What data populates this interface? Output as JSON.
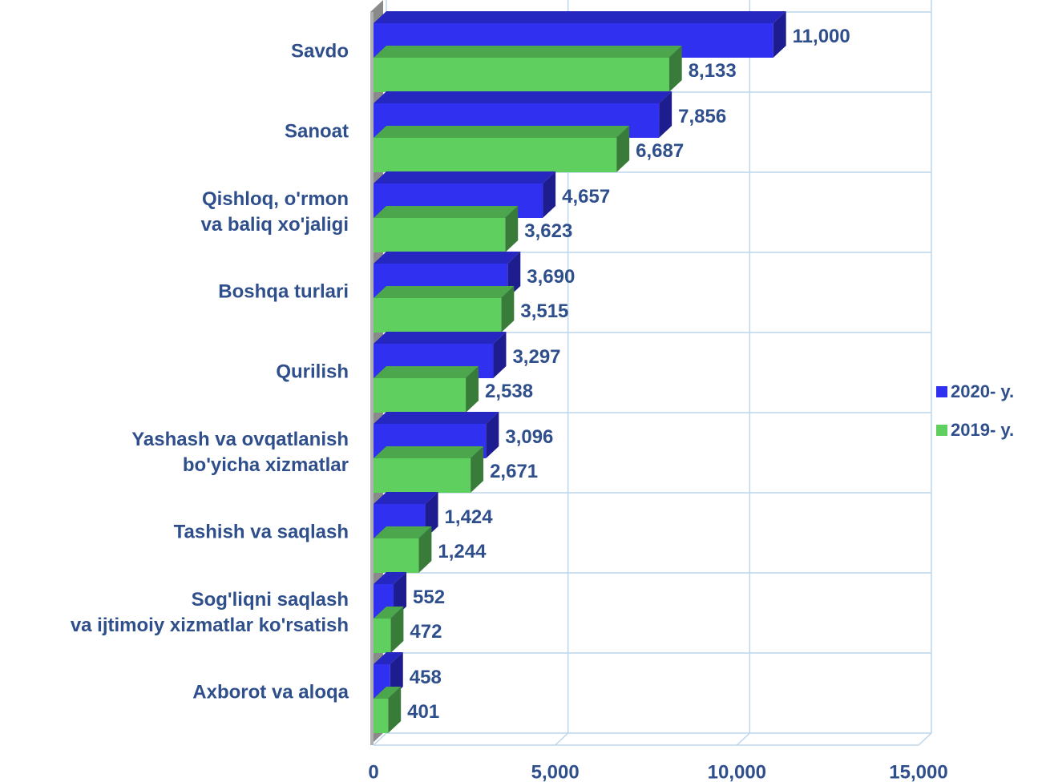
{
  "chart_data": {
    "type": "bar",
    "orientation": "horizontal",
    "categories": [
      "Savdo",
      "Sanoat",
      "Qishloq, o'rmon\nva baliq xo'jaligi",
      "Boshqa turlari",
      "Qurilish",
      "Yashash va ovqatlanish\nbo'yicha xizmatlar",
      "Tashish va saqlash",
      "Sog'liqni saqlash\nva ijtimoiy xizmatlar ko'rsatish",
      "Axborot va aloqa"
    ],
    "series": [
      {
        "name": "2020- y.",
        "color": "#3030f0",
        "values": [
          11000,
          7856,
          4657,
          3690,
          3297,
          3096,
          1424,
          552,
          458
        ],
        "value_labels": [
          "11,000",
          "7,856",
          "4,657",
          "3,690",
          "3,297",
          "3,096",
          "1,424",
          "552",
          "458"
        ]
      },
      {
        "name": "2019- y.",
        "color": "#5fcf5f",
        "values": [
          8133,
          6687,
          3623,
          3515,
          2538,
          2671,
          1244,
          472,
          401
        ],
        "value_labels": [
          "8,133",
          "6,687",
          "3,623",
          "3,515",
          "2,538",
          "2,671",
          "1,244",
          "472",
          "401"
        ]
      }
    ],
    "xlim": [
      0,
      15000
    ],
    "xticks": [
      0,
      {
        "value": 5000,
        "label": "5,000"
      },
      {
        "value": 10000,
        "label": "10,000"
      },
      {
        "value": 15000,
        "label": "15,000"
      }
    ],
    "grid": true,
    "legend": "right"
  }
}
